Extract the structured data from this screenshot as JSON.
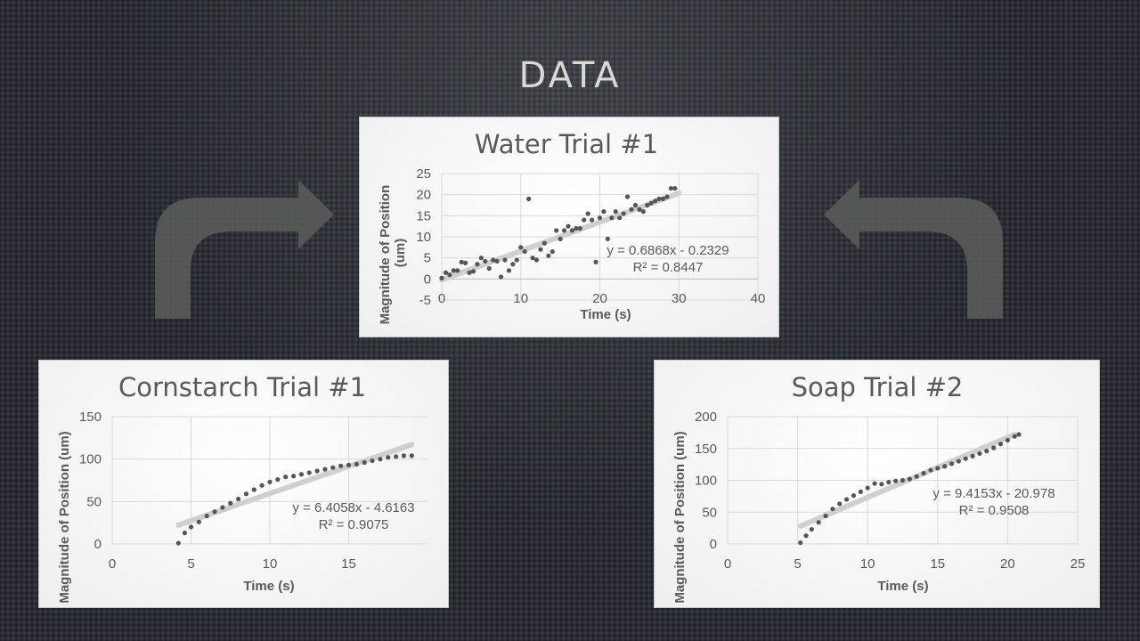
{
  "slide": {
    "title": "DATA"
  },
  "arrows": [
    {
      "name": "curved-arrow-right-icon"
    },
    {
      "name": "curved-arrow-left-icon"
    }
  ],
  "chart_data": [
    {
      "id": "water",
      "type": "scatter",
      "title": "Water Trial #1",
      "xlabel": "Time (s)",
      "ylabel": "Magnitude of Position (um)",
      "xlim": [
        0,
        40
      ],
      "ylim": [
        -5,
        25
      ],
      "xticks": [
        0,
        10,
        20,
        30,
        40
      ],
      "yticks": [
        -5,
        0,
        5,
        10,
        15,
        20,
        25
      ],
      "grid": "vertical and horizontal",
      "trendline": {
        "slope": 0.6868,
        "intercept": -0.2329,
        "x_range": [
          0,
          30
        ]
      },
      "equation": "y = 0.6868x - 0.2329",
      "r2": "R² = 0.8447",
      "points": [
        [
          0,
          0.2
        ],
        [
          0.5,
          1.5
        ],
        [
          1,
          1
        ],
        [
          1.5,
          2
        ],
        [
          2,
          2
        ],
        [
          2.5,
          4
        ],
        [
          3,
          3.8
        ],
        [
          3.5,
          1.5
        ],
        [
          4,
          1.8
        ],
        [
          4.5,
          3.5
        ],
        [
          5,
          5
        ],
        [
          5.5,
          4.2
        ],
        [
          6,
          2.5
        ],
        [
          6.5,
          4.5
        ],
        [
          7,
          4.2
        ],
        [
          7.5,
          0.5
        ],
        [
          8,
          4.5
        ],
        [
          8.5,
          2
        ],
        [
          9,
          3.5
        ],
        [
          9.5,
          4.5
        ],
        [
          10,
          7.5
        ],
        [
          10.5,
          6.5
        ],
        [
          11,
          19
        ],
        [
          11.5,
          5
        ],
        [
          12,
          4.5
        ],
        [
          12.5,
          7
        ],
        [
          13,
          8.5
        ],
        [
          13.5,
          5.5
        ],
        [
          14,
          6.5
        ],
        [
          14.5,
          11.5
        ],
        [
          15,
          9.5
        ],
        [
          15.5,
          11.5
        ],
        [
          16,
          12.5
        ],
        [
          16.5,
          11.5
        ],
        [
          17,
          12
        ],
        [
          17.5,
          12
        ],
        [
          18,
          14
        ],
        [
          18.5,
          15.5
        ],
        [
          19,
          14
        ],
        [
          19.5,
          4
        ],
        [
          20,
          14.5
        ],
        [
          20.5,
          16
        ],
        [
          21,
          9.5
        ],
        [
          21.5,
          14.5
        ],
        [
          22,
          16
        ],
        [
          22.5,
          14.5
        ],
        [
          23,
          15.5
        ],
        [
          23.5,
          19.5
        ],
        [
          24,
          16.5
        ],
        [
          24.5,
          17.5
        ],
        [
          25,
          16.5
        ],
        [
          25.5,
          16
        ],
        [
          26,
          17.5
        ],
        [
          26.5,
          18
        ],
        [
          27,
          18.5
        ],
        [
          27.5,
          19
        ],
        [
          28,
          19
        ],
        [
          28.5,
          19.5
        ],
        [
          29,
          21.5
        ],
        [
          29.5,
          21.5
        ]
      ]
    },
    {
      "id": "cornstarch",
      "type": "scatter",
      "title": "Cornstarch Trial #1",
      "xlabel": "Time (s)",
      "ylabel": "Magnitude of Position (um)",
      "xlim": [
        0,
        20
      ],
      "ylim": [
        0,
        150
      ],
      "xticks": [
        0,
        5,
        10,
        15
      ],
      "yticks": [
        0,
        50,
        100,
        150
      ],
      "grid": "vertical and horizontal",
      "trendline": {
        "slope": 6.4058,
        "intercept": -4.6163,
        "x_range": [
          4.2,
          19
        ]
      },
      "equation": "y = 6.4058x - 4.6163",
      "r2": "R² = 0.9075",
      "points": [
        [
          4.2,
          1
        ],
        [
          4.6,
          13
        ],
        [
          5,
          20
        ],
        [
          5.5,
          26
        ],
        [
          6,
          33
        ],
        [
          6.5,
          38
        ],
        [
          7,
          43
        ],
        [
          7.5,
          48
        ],
        [
          8,
          53
        ],
        [
          8.5,
          59
        ],
        [
          9,
          64
        ],
        [
          9.5,
          69
        ],
        [
          10,
          73
        ],
        [
          10.5,
          76
        ],
        [
          11,
          79
        ],
        [
          11.5,
          80
        ],
        [
          12,
          82
        ],
        [
          12.5,
          84
        ],
        [
          13,
          86
        ],
        [
          13.5,
          88
        ],
        [
          14,
          90
        ],
        [
          14.5,
          92
        ],
        [
          15,
          93
        ],
        [
          15.5,
          94
        ],
        [
          16,
          96
        ],
        [
          16.5,
          98
        ],
        [
          17,
          100
        ],
        [
          17.5,
          102
        ],
        [
          18,
          103
        ],
        [
          18.5,
          104
        ],
        [
          19,
          104
        ]
      ]
    },
    {
      "id": "soap",
      "type": "scatter",
      "title": "Soap Trial #2",
      "xlabel": "Time (s)",
      "ylabel": "Magnitude of Position (um)",
      "xlim": [
        0,
        25
      ],
      "ylim": [
        0,
        200
      ],
      "xticks": [
        0,
        5,
        10,
        15,
        20,
        25
      ],
      "yticks": [
        0,
        50,
        100,
        150,
        200
      ],
      "grid": "vertical and horizontal",
      "trendline": {
        "slope": 9.4153,
        "intercept": -20.978,
        "x_range": [
          5.2,
          20.5
        ]
      },
      "equation": "y = 9.4153x - 20.978",
      "r2": "R² = 0.9508",
      "points": [
        [
          5.2,
          2
        ],
        [
          5.6,
          13
        ],
        [
          6,
          23
        ],
        [
          6.5,
          34
        ],
        [
          7,
          44
        ],
        [
          7.5,
          55
        ],
        [
          8,
          63
        ],
        [
          8.5,
          70
        ],
        [
          9,
          76
        ],
        [
          9.5,
          82
        ],
        [
          10,
          88
        ],
        [
          10.5,
          95
        ],
        [
          11,
          94
        ],
        [
          11.5,
          97
        ],
        [
          12,
          99
        ],
        [
          12.5,
          100
        ],
        [
          13,
          102
        ],
        [
          13.5,
          106
        ],
        [
          14,
          111
        ],
        [
          14.5,
          116
        ],
        [
          15,
          119
        ],
        [
          15.5,
          122
        ],
        [
          16,
          126
        ],
        [
          16.5,
          130
        ],
        [
          17,
          134
        ],
        [
          17.5,
          138
        ],
        [
          18,
          142
        ],
        [
          18.5,
          146
        ],
        [
          19,
          151
        ],
        [
          19.5,
          157
        ],
        [
          20,
          163
        ],
        [
          20.5,
          169
        ],
        [
          20.8,
          172
        ]
      ]
    }
  ]
}
